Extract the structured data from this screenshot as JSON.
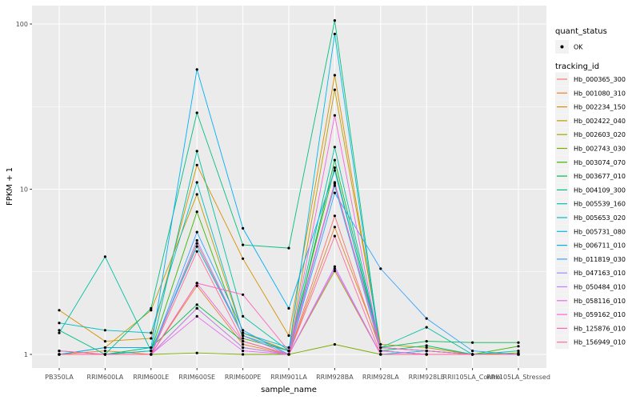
{
  "chart_data": {
    "type": "line",
    "title": "",
    "xlabel": "sample_name",
    "ylabel": "FPKM + 1",
    "y_scale": "log10",
    "ylim": [
      0.95,
      130
    ],
    "grid": true,
    "panel_bg": "#EBEBEB",
    "grid_color": "#FFFFFF",
    "marker_color": "#000000",
    "axis_text_color": "#4D4D4D",
    "y_ticks": [
      {
        "value": 1,
        "label": "1"
      },
      {
        "value": 10,
        "label": "10"
      },
      {
        "value": 100,
        "label": "100"
      }
    ],
    "y_minor": [
      3.162,
      31.623
    ],
    "categories": [
      "PB350LA",
      "RRIM600LA",
      "RRIM600LE",
      "RRIM600SE",
      "RRIM600PE",
      "RRIM901LA",
      "RRIM928BA",
      "RRIM928LA",
      "RRIM928LE",
      "RRII105LA_Control",
      "RRII105LA_Stressed"
    ],
    "series": [
      {
        "name": "Hb_000365_300",
        "color": "#F8766D",
        "values": [
          1.0,
          1.0,
          1.0,
          4.7,
          1.3,
          1.0,
          6.9,
          1.05,
          1.0,
          1.0,
          1.0
        ]
      },
      {
        "name": "Hb_001080_310",
        "color": "#EA8331",
        "values": [
          1.0,
          1.05,
          1.0,
          2.6,
          1.15,
          1.0,
          5.9,
          1.1,
          1.05,
          1.0,
          1.0
        ]
      },
      {
        "name": "Hb_002234_150",
        "color": "#D89000",
        "values": [
          1.85,
          1.2,
          1.25,
          14.0,
          3.8,
          1.3,
          49.0,
          1.1,
          1.05,
          1.0,
          1.0
        ]
      },
      {
        "name": "Hb_002422_040",
        "color": "#C09B00",
        "values": [
          1.0,
          1.1,
          1.85,
          9.3,
          1.35,
          1.05,
          40.0,
          1.15,
          1.1,
          1.0,
          1.0
        ]
      },
      {
        "name": "Hb_002603_020",
        "color": "#A3A500",
        "values": [
          1.0,
          1.0,
          1.0,
          1.9,
          1.1,
          1.0,
          3.2,
          1.0,
          1.0,
          1.0,
          1.0
        ]
      },
      {
        "name": "Hb_002743_030",
        "color": "#7CAE00",
        "values": [
          1.0,
          1.0,
          1.0,
          1.02,
          1.0,
          1.0,
          1.15,
          1.0,
          1.0,
          1.0,
          1.02
        ]
      },
      {
        "name": "Hb_003074_070",
        "color": "#39B600",
        "values": [
          1.0,
          1.0,
          1.05,
          7.3,
          1.25,
          1.05,
          13.5,
          1.05,
          1.0,
          1.0,
          1.12
        ]
      },
      {
        "name": "Hb_003677_010",
        "color": "#00BB4E",
        "values": [
          1.05,
          1.0,
          1.1,
          2.0,
          1.2,
          1.0,
          15.0,
          1.1,
          1.2,
          1.18,
          1.18
        ]
      },
      {
        "name": "Hb_004109_300",
        "color": "#00BF7D",
        "values": [
          1.4,
          1.0,
          1.9,
          29.0,
          4.6,
          4.4,
          105.0,
          1.05,
          1.13,
          1.0,
          1.0
        ]
      },
      {
        "name": "Hb_005539_160",
        "color": "#00C1A3",
        "values": [
          1.35,
          3.9,
          1.05,
          17.0,
          1.7,
          1.05,
          18.0,
          1.1,
          1.46,
          1.0,
          1.05
        ]
      },
      {
        "name": "Hb_005653_020",
        "color": "#00BFC4",
        "values": [
          1.55,
          1.4,
          1.35,
          11.0,
          1.35,
          1.1,
          10.5,
          1.05,
          1.0,
          1.0,
          1.0
        ]
      },
      {
        "name": "Hb_005731_080",
        "color": "#00BAE0",
        "values": [
          1.0,
          1.0,
          1.05,
          4.5,
          1.3,
          1.05,
          87.0,
          1.0,
          1.05,
          1.0,
          1.0
        ]
      },
      {
        "name": "Hb_006711_010",
        "color": "#00B0F6",
        "values": [
          1.0,
          1.1,
          1.1,
          53.0,
          5.8,
          1.9,
          13.0,
          1.1,
          1.05,
          1.0,
          1.0
        ]
      },
      {
        "name": "Hb_011819_030",
        "color": "#35A2FF",
        "values": [
          1.0,
          1.0,
          1.0,
          5.5,
          1.4,
          1.0,
          9.5,
          3.3,
          1.65,
          1.05,
          1.0
        ]
      },
      {
        "name": "Hb_047163_010",
        "color": "#9590FF",
        "values": [
          1.0,
          1.0,
          1.0,
          4.9,
          1.3,
          1.0,
          10.8,
          1.05,
          1.0,
          1.0,
          1.0
        ]
      },
      {
        "name": "Hb_050484_010",
        "color": "#C77CFF",
        "values": [
          1.0,
          1.0,
          1.0,
          1.9,
          1.1,
          1.0,
          3.4,
          1.0,
          1.0,
          1.0,
          1.0
        ]
      },
      {
        "name": "Hb_058116_010",
        "color": "#E76BF3",
        "values": [
          1.0,
          1.0,
          1.0,
          1.7,
          1.05,
          1.0,
          3.3,
          1.0,
          1.0,
          1.0,
          1.0
        ]
      },
      {
        "name": "Hb_059162_010",
        "color": "#FA62DB",
        "values": [
          1.0,
          1.0,
          1.0,
          2.7,
          1.2,
          1.0,
          28.0,
          1.05,
          1.0,
          1.0,
          1.0
        ]
      },
      {
        "name": "Hb_125876_010",
        "color": "#FF62BC",
        "values": [
          1.05,
          1.0,
          1.0,
          2.7,
          2.3,
          1.05,
          11.0,
          1.1,
          1.05,
          1.0,
          1.0
        ]
      },
      {
        "name": "Hb_156949_010",
        "color": "#FF6A98",
        "values": [
          1.0,
          1.0,
          1.0,
          4.2,
          1.2,
          1.0,
          5.2,
          1.0,
          1.0,
          1.0,
          1.0
        ]
      }
    ],
    "legend": {
      "position": "right",
      "key_bg": "#F2F2F2",
      "quant_status": {
        "title": "quant_status",
        "items": [
          {
            "label": "OK",
            "marker": "black-point"
          }
        ]
      },
      "tracking_id": {
        "title": "tracking_id"
      }
    }
  }
}
